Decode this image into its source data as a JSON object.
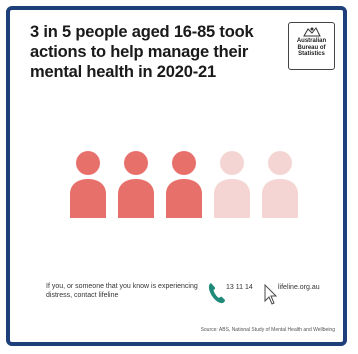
{
  "headline": "3 in 5 people aged 16-85 took actions to help manage their mental health in 2020-21",
  "logo": {
    "lines": [
      "Australian",
      "Bureau of",
      "Statistics"
    ],
    "icon": "crest-icon"
  },
  "people": {
    "filled_count": 3,
    "total_count": 5,
    "filled_color": "#e8706a",
    "empty_color": "#f5d5d3"
  },
  "contact": {
    "text": "If you, or someone that you know is experiencing distress, contact lifeline",
    "phone": "13 11 14",
    "phone_icon": "phone-icon",
    "phone_color": "#1f8a7a",
    "website": "lifeline.org.au",
    "website_icon": "cursor-icon"
  },
  "source": "Source: ABS, National Study of Mental Health and Wellbeing"
}
